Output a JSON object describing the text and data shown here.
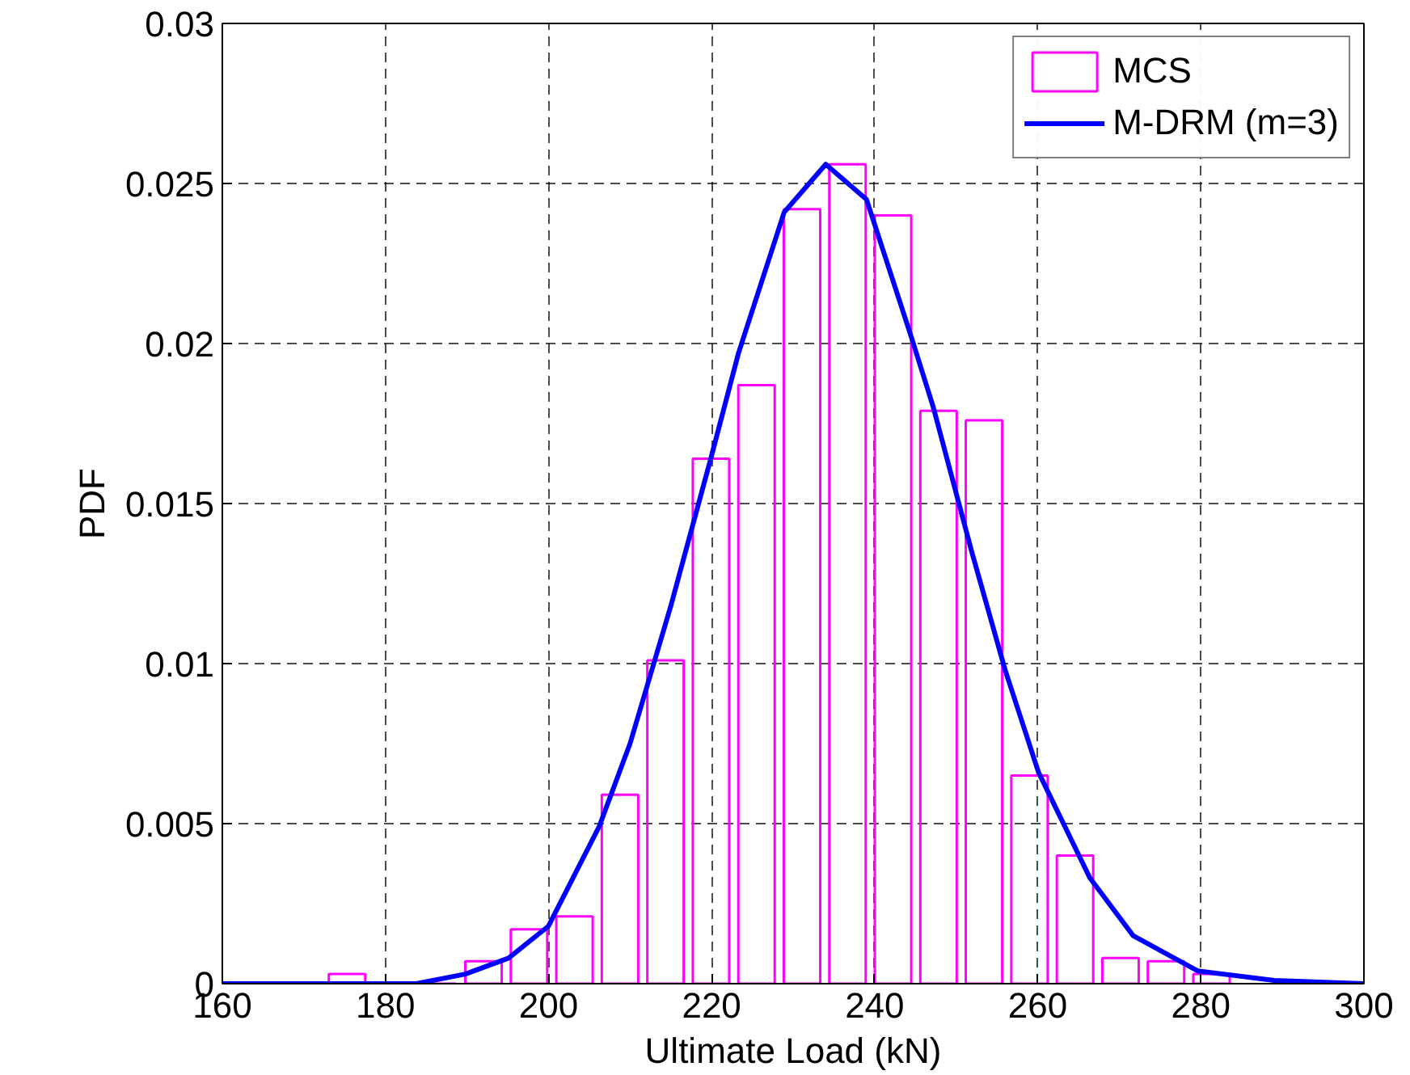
{
  "chart_data": {
    "type": "histogram",
    "xlabel": "Ultimate Load (kN)",
    "ylabel": "PDF",
    "bins": [
      172.5,
      178.08,
      183.66,
      189.24,
      194.82,
      200.4,
      205.98,
      211.56,
      217.14,
      222.72,
      228.3,
      233.88,
      239.46,
      245.04,
      250.62,
      256.2,
      261.78,
      267.36,
      272.94,
      278.52,
      284.1
    ],
    "series": [
      {
        "name": "MCS",
        "color": "#ff00ff",
        "values": [
          0.0003,
          0,
          0,
          0.0007,
          0.0017,
          0.0021,
          0.0059,
          0.0101,
          0.0164,
          0.0187,
          0.0242,
          0.0256,
          0.024,
          0.0179,
          0.0176,
          0.0065,
          0.004,
          0.0008,
          0.0007,
          0.0003
        ]
      },
      {
        "name": "M-DRM (m=3)",
        "type": "line",
        "color": "#0000ff",
        "x": [
          160,
          175,
          183.8,
          189.8,
          195.1,
          200,
          206.2,
          210,
          215,
          220,
          223.3,
          228.9,
          234,
          239,
          244.5,
          247.2,
          251.9,
          256,
          260.1,
          266.4,
          271.7,
          279.6,
          289,
          300
        ],
        "values": [
          0,
          0,
          0,
          0.0003,
          0.0008,
          0.0018,
          0.0049,
          0.0075,
          0.0118,
          0.0165,
          0.0197,
          0.0241,
          0.0256,
          0.0245,
          0.0202,
          0.018,
          0.0135,
          0.0098,
          0.0066,
          0.0033,
          0.0015,
          0.0004,
          0.0001,
          0
        ]
      }
    ],
    "xlim": [
      160,
      300
    ],
    "xticks": [
      160,
      180,
      200,
      220,
      240,
      260,
      280,
      300
    ],
    "ylim": [
      0,
      0.03
    ],
    "yticks": [
      0,
      0.005,
      0.01,
      0.015,
      0.02,
      0.025,
      0.03
    ],
    "grid": true,
    "legend": "top right"
  }
}
